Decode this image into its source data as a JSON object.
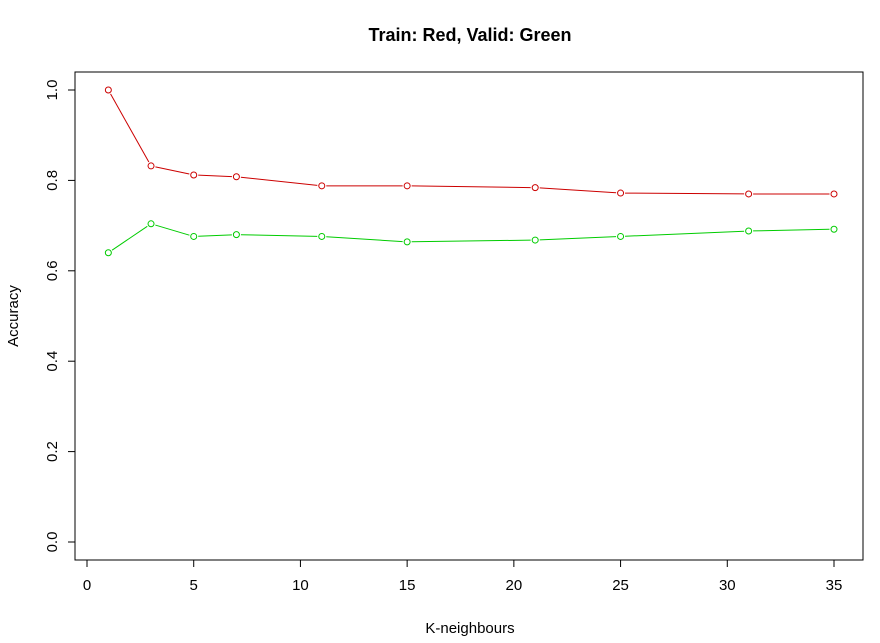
{
  "chart_data": {
    "type": "line",
    "title": "Train: Red, Valid: Green",
    "xlabel": "K-neighbours",
    "ylabel": "Accuracy",
    "xlim": [
      0,
      35
    ],
    "ylim": [
      0,
      1.0
    ],
    "xticks": [
      "0",
      "5",
      "10",
      "15",
      "20",
      "25",
      "30",
      "35"
    ],
    "yticks": [
      "0.0",
      "0.2",
      "0.4",
      "0.6",
      "0.8",
      "1.0"
    ],
    "x": [
      1,
      3,
      5,
      7,
      11,
      15,
      21,
      25,
      31,
      35
    ],
    "series": [
      {
        "color": "#cc0000",
        "values": [
          1.0,
          0.832,
          0.812,
          0.808,
          0.788,
          0.788,
          0.784,
          0.772,
          0.77,
          0.77
        ]
      },
      {
        "color": "#00cc00",
        "values": [
          0.64,
          0.704,
          0.676,
          0.68,
          0.676,
          0.664,
          0.668,
          0.676,
          0.688,
          0.692
        ]
      }
    ],
    "grid": false,
    "legend": "none"
  }
}
